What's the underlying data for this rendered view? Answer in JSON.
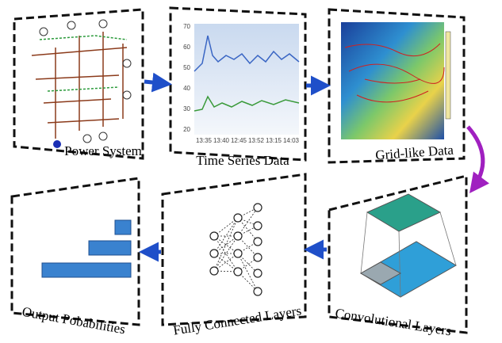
{
  "panels": [
    {
      "label": "Power System"
    },
    {
      "label": "Time Series Data"
    },
    {
      "label": "Grid-like Data"
    },
    {
      "label": "Convolutional Layers"
    },
    {
      "label": "Fully Connected Layers"
    },
    {
      "label": "Output Pobabilities"
    }
  ],
  "time_series": {
    "y_labels": [
      "70",
      "60",
      "50",
      "40",
      "30",
      "20"
    ],
    "x_labels": [
      "13:35",
      "13:40",
      "12:45",
      "13:52",
      "13:15",
      "14:03"
    ]
  }
}
